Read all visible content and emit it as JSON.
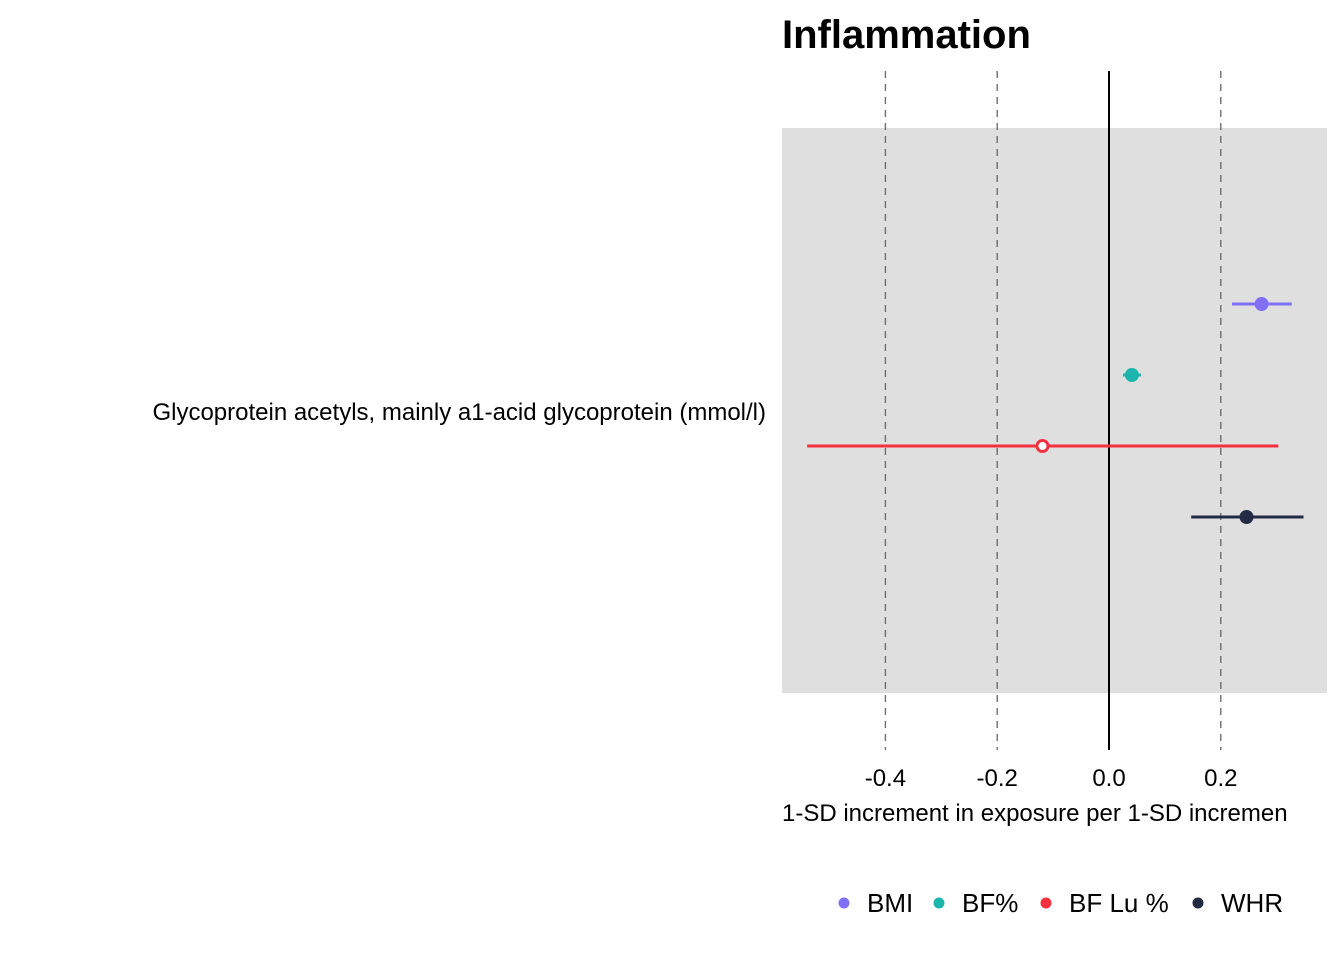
{
  "chart_data": {
    "type": "forest",
    "title": "Inflammation",
    "xlabel": "1-SD increment in exposure per 1-SD incremen",
    "ylabel": "",
    "xlim": [
      -0.585,
      0.39
    ],
    "x_ticks": [
      -0.4,
      -0.2,
      0.0,
      0.2
    ],
    "x_tick_labels": [
      "-0.4",
      "-0.2",
      "0.0",
      "0.2"
    ],
    "reference_line": 0.0,
    "dashed_gridlines": [
      -0.4,
      -0.2,
      0.2
    ],
    "categories": [
      "Glycoprotein acetyls, mainly a1-acid glycoprotein (mmol/l)"
    ],
    "series": [
      {
        "name": "BMI",
        "color": "#8070f8",
        "estimate": 0.273,
        "lower": 0.22,
        "upper": 0.327,
        "marker": "filled"
      },
      {
        "name": "BF%",
        "color": "#1bb5ad",
        "estimate": 0.041,
        "lower": 0.025,
        "upper": 0.057,
        "marker": "filled"
      },
      {
        "name": "BF Lu %",
        "color": "#f5313f",
        "estimate": -0.119,
        "lower": -0.54,
        "upper": 0.303,
        "marker": "open"
      },
      {
        "name": "WHR",
        "color": "#232b44",
        "estimate": 0.246,
        "lower": 0.147,
        "upper": 0.348,
        "marker": "filled"
      }
    ],
    "legend_position": "bottom",
    "panel_background": "#dfdfdf"
  }
}
